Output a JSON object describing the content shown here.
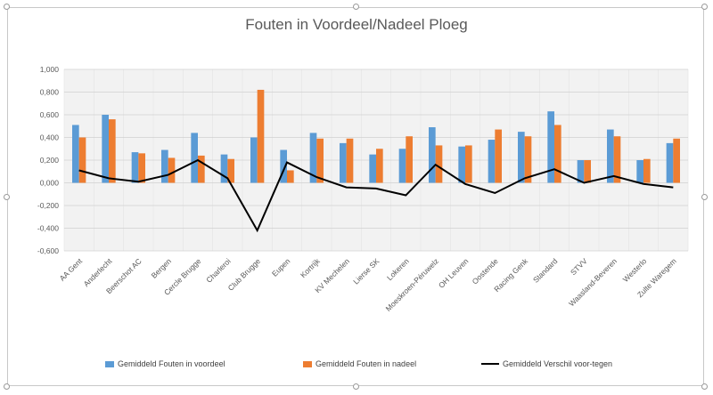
{
  "chart_data": {
    "type": "bar",
    "title": "Fouten in Voordeel/Nadeel Ploeg",
    "categories": [
      "AA Gent",
      "Anderlecht",
      "Beerschot AC",
      "Bergen",
      "Cercle Brugge",
      "Charleroi",
      "Club Brugge",
      "Eupen",
      "Kortrijk",
      "KV Mechelen",
      "Lierse SK",
      "Lokeren",
      "Moeskroen-Péruwelz",
      "OH Leuven",
      "Oostende",
      "Racing Genk",
      "Standard",
      "STVV",
      "Waasland-Beveren",
      "Westerlo",
      "Zulte Waregem"
    ],
    "ylim": [
      -0.6,
      1.0
    ],
    "yticks": [
      "1,000",
      "0,800",
      "0,600",
      "0,400",
      "0,200",
      "0,000",
      "-0,200",
      "-0,400",
      "-0,600"
    ],
    "ytick_values": [
      1.0,
      0.8,
      0.6,
      0.4,
      0.2,
      0.0,
      -0.2,
      -0.4,
      -0.6
    ],
    "grid": true,
    "legend_position": "bottom",
    "series": [
      {
        "name": "Gemiddeld Fouten in voordeel",
        "kind": "bar",
        "color": "#5b9bd5",
        "values": [
          0.51,
          0.6,
          0.27,
          0.29,
          0.44,
          0.25,
          0.4,
          0.29,
          0.44,
          0.35,
          0.25,
          0.3,
          0.49,
          0.32,
          0.38,
          0.45,
          0.63,
          0.2,
          0.47,
          0.2,
          0.35
        ]
      },
      {
        "name": "Gemiddeld Fouten in nadeel",
        "kind": "bar",
        "color": "#ed7d31",
        "values": [
          0.4,
          0.56,
          0.26,
          0.22,
          0.24,
          0.21,
          0.82,
          0.11,
          0.39,
          0.39,
          0.3,
          0.41,
          0.33,
          0.33,
          0.47,
          0.41,
          0.51,
          0.2,
          0.41,
          0.21,
          0.39
        ]
      },
      {
        "name": "Gemiddeld Verschil voor-tegen",
        "kind": "line",
        "color": "#000000",
        "values": [
          0.11,
          0.04,
          0.01,
          0.07,
          0.2,
          0.04,
          -0.42,
          0.18,
          0.05,
          -0.04,
          -0.05,
          -0.11,
          0.16,
          -0.01,
          -0.09,
          0.04,
          0.12,
          0.0,
          0.06,
          -0.01,
          -0.04
        ]
      }
    ]
  }
}
